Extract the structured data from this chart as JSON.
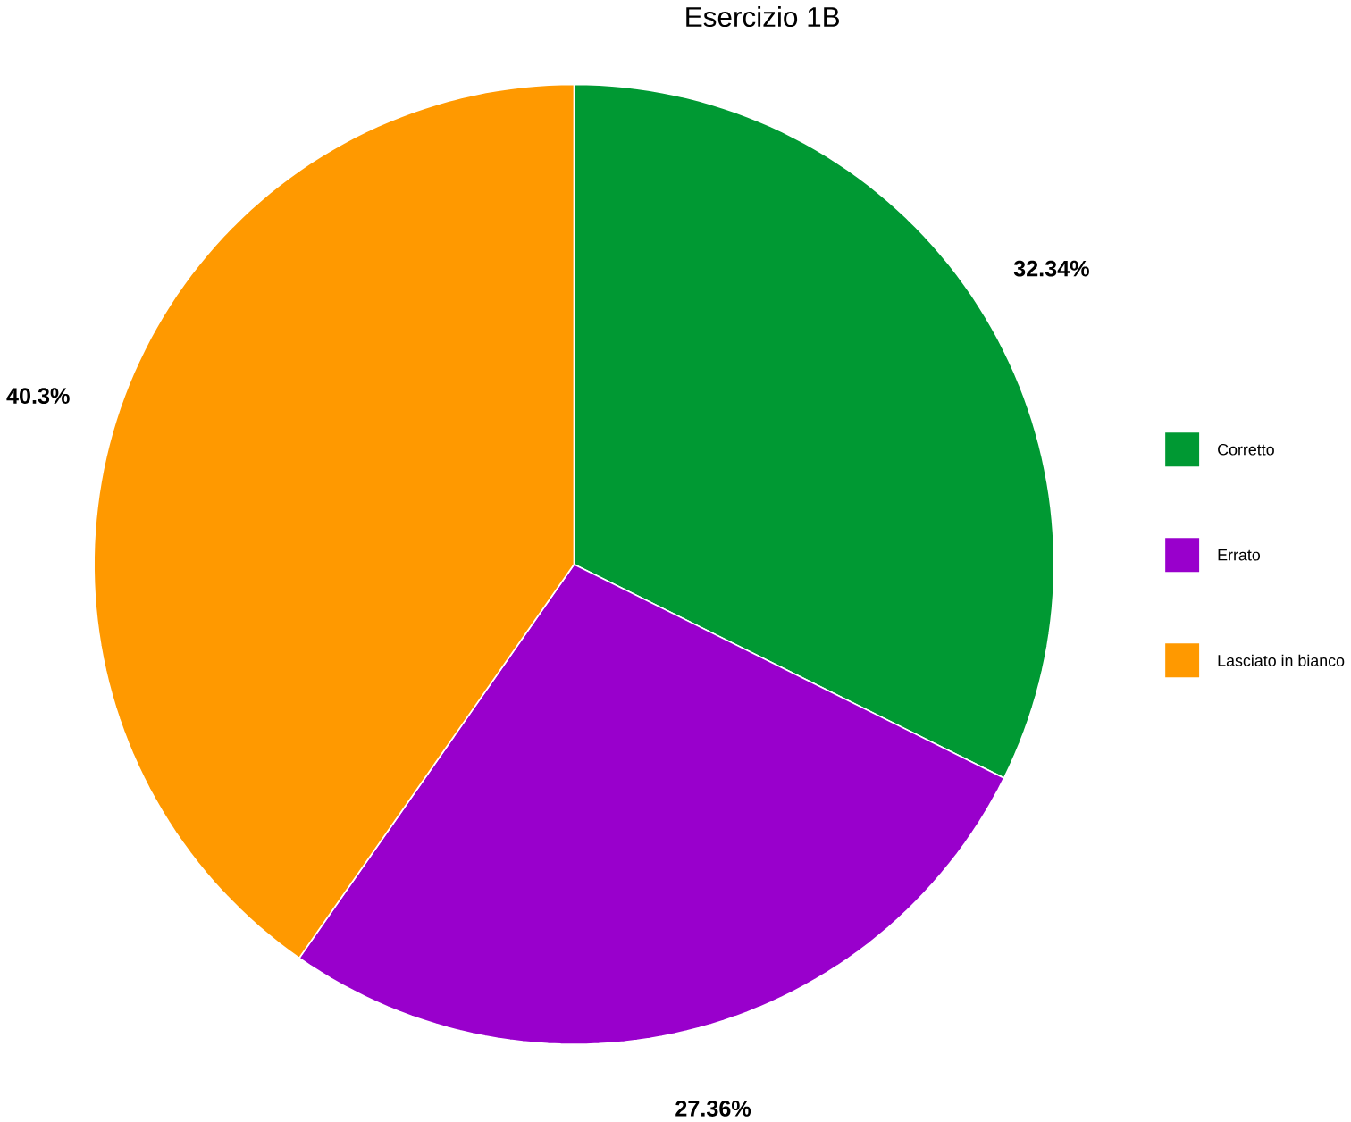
{
  "chart_data": {
    "type": "pie",
    "title": "Esercizio 1B",
    "categories": [
      "Corretto",
      "Errato",
      "Lasciato in bianco"
    ],
    "values": [
      32.34,
      27.36,
      40.3
    ],
    "colors": [
      "#009933",
      "#9900cc",
      "#ff9900"
    ],
    "value_labels": [
      "32.34%",
      "27.36%",
      "40.3%"
    ],
    "legend": "right"
  }
}
